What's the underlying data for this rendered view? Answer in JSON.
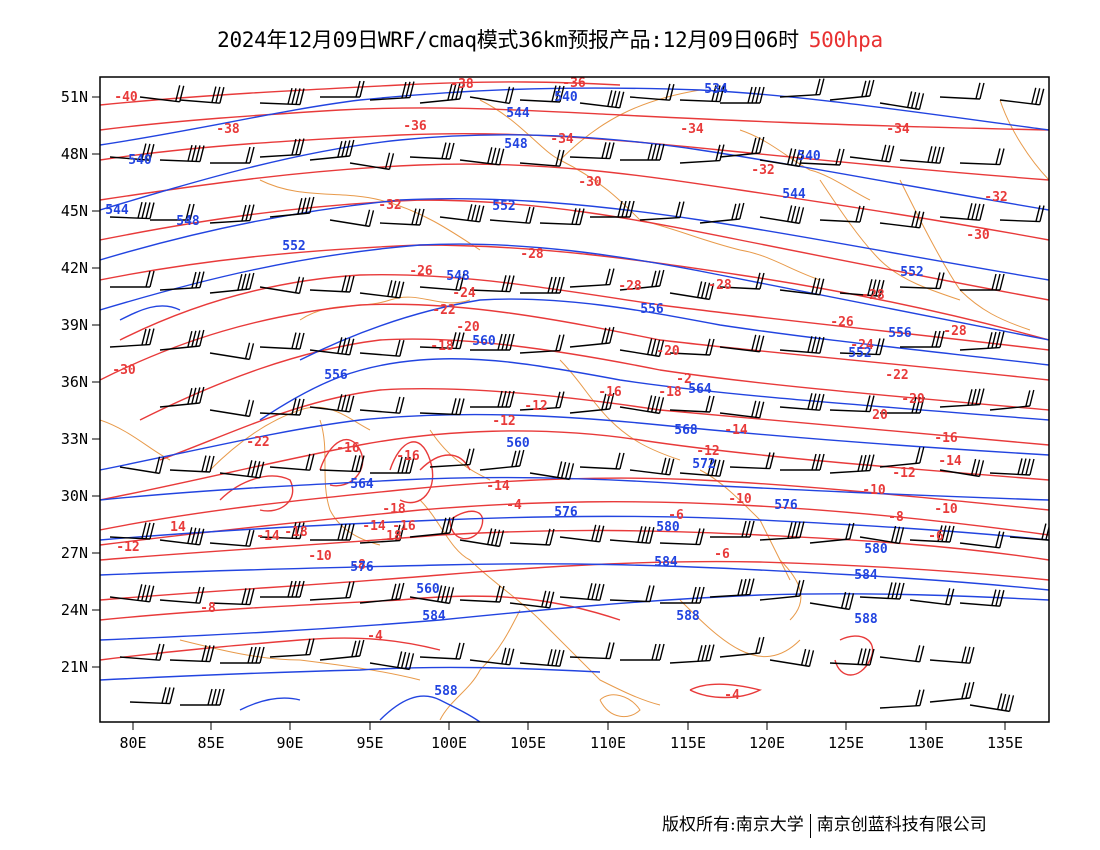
{
  "title": {
    "main": "2024年12月09日WRF/cmaq模式36km预报产品:12月09日06时",
    "level": "500hpa"
  },
  "colors": {
    "temperature": "#e83a3a",
    "height": "#2244e0",
    "borders": "#e89a4a",
    "wind": "#000000",
    "frame": "#000000"
  },
  "axes": {
    "x_ticks": [
      "80E",
      "85E",
      "90E",
      "95E",
      "100E",
      "105E",
      "110E",
      "115E",
      "120E",
      "125E",
      "130E",
      "135E"
    ],
    "y_ticks": [
      "51N",
      "48N",
      "45N",
      "42N",
      "39N",
      "36N",
      "33N",
      "30N",
      "27N",
      "24N",
      "21N"
    ]
  },
  "legend_items": {
    "temperature_labels": [
      "-40",
      "-38",
      "-38",
      "-36",
      "-36",
      "-34",
      "-34",
      "-34",
      "-32",
      "-32",
      "-32",
      "-30",
      "-30",
      "-30",
      "-28",
      "-28",
      "-28",
      "-28",
      "-28",
      "-26",
      "-26",
      "-24",
      "-24",
      "-22",
      "-22",
      "-22",
      "-20",
      "-20",
      "-20",
      "-18",
      "-18",
      "-18",
      "-16",
      "-16",
      "-16",
      "-16",
      "-14",
      "-14",
      "-14",
      "-12",
      "-12",
      "-12",
      "-12",
      "-10",
      "-10",
      "-10",
      "-10",
      "-8",
      "-8",
      "-8",
      "-6",
      "-6",
      "-6",
      "-4",
      "-4",
      "-4",
      "-2",
      "20",
      "18",
      "-18",
      "-16",
      "-14",
      "14",
      "-12",
      "-14"
    ],
    "height_labels": [
      "534",
      "540",
      "544",
      "540",
      "548",
      "544",
      "540",
      "552",
      "548",
      "552",
      "544",
      "552",
      "548",
      "556",
      "560",
      "556",
      "556",
      "552",
      "564",
      "568",
      "560",
      "564",
      "576",
      "572",
      "576",
      "580",
      "580",
      "584",
      "584",
      "588",
      "588",
      "584",
      "588",
      "576",
      "560"
    ]
  },
  "copyright": {
    "owner1": "版权所有:南京大学",
    "owner2": "南京创蓝科技有限公司"
  }
}
